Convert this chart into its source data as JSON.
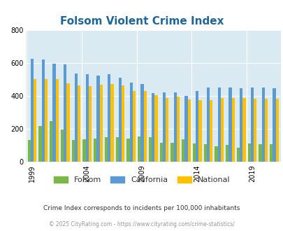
{
  "title": "Folsom Violent Crime Index",
  "subtitle": "Crime Index corresponds to incidents per 100,000 inhabitants",
  "footer": "© 2025 CityRating.com - https://www.cityrating.com/crime-statistics/",
  "years": [
    1999,
    2000,
    2001,
    2002,
    2003,
    2004,
    2005,
    2006,
    2007,
    2008,
    2009,
    2010,
    2011,
    2012,
    2013,
    2014,
    2015,
    2016,
    2017,
    2018,
    2019,
    2020,
    2021
  ],
  "folsom": [
    130,
    215,
    245,
    195,
    130,
    135,
    140,
    148,
    148,
    140,
    155,
    150,
    113,
    113,
    135,
    110,
    107,
    95,
    100,
    85,
    110,
    107,
    107
  ],
  "california": [
    625,
    620,
    595,
    590,
    535,
    530,
    525,
    530,
    510,
    480,
    470,
    415,
    422,
    420,
    400,
    430,
    450,
    450,
    450,
    445,
    450,
    450,
    445
  ],
  "national": [
    500,
    500,
    500,
    475,
    465,
    460,
    469,
    473,
    463,
    430,
    430,
    405,
    387,
    395,
    380,
    373,
    373,
    387,
    385,
    385,
    383,
    383,
    383
  ],
  "bar_colors": {
    "folsom": "#7ab648",
    "california": "#5b9bd5",
    "national": "#ffc000"
  },
  "plot_bg": "#daeaf3",
  "ylim": [
    0,
    800
  ],
  "yticks": [
    0,
    200,
    400,
    600,
    800
  ],
  "xtick_years": [
    1999,
    2004,
    2009,
    2014,
    2019
  ],
  "title_color": "#1f6699",
  "subtitle_color": "#333333",
  "footer_color": "#999999"
}
